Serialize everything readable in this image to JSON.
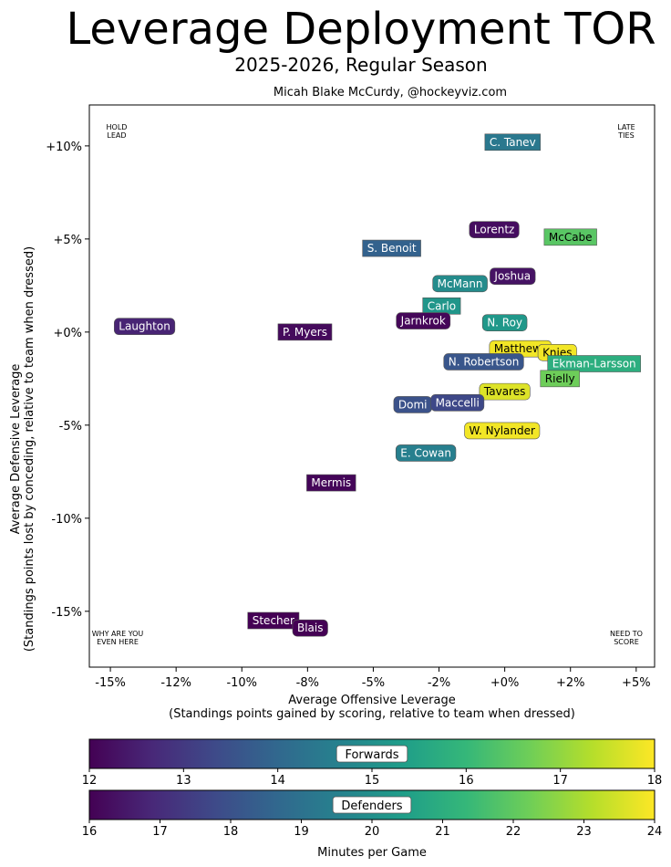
{
  "header": {
    "title": "Leverage Deployment TOR",
    "subtitle": "2025-2026, Regular Season",
    "author": "Micah Blake McCurdy, @hockeyviz.com"
  },
  "chart_data": {
    "type": "scatter",
    "title": "Leverage Deployment TOR",
    "subtitle": "2025-2026, Regular Season",
    "xlabel": "Average Offensive Leverage",
    "xlabel2": "(Standings points gained by scoring, relative to team when dressed)",
    "ylabel": "Average Defensive Leverage",
    "ylabel2": "(Standings points lost by conceding, relative to team when dressed)",
    "xlim": [
      -15.8,
      5.7
    ],
    "ylim": [
      -18.0,
      12.2
    ],
    "xticks": [
      -15,
      -12.5,
      -10,
      -7.5,
      -5,
      -2.5,
      0,
      2.5,
      5
    ],
    "xtick_labels": [
      "-15%",
      "-12%",
      "-10%",
      "-8%",
      "-5%",
      "-2%",
      "+0%",
      "+2%",
      "+5%"
    ],
    "yticks": [
      10,
      5,
      0,
      -5,
      -10,
      -15
    ],
    "ytick_labels": [
      "+10%",
      "+5%",
      "+0%",
      "-5%",
      "-10%",
      "-15%"
    ],
    "corners": {
      "top_left": [
        "HOLD",
        "LEAD"
      ],
      "top_right": [
        "LATE",
        "TIES"
      ],
      "bottom_left": [
        "WHY ARE YOU",
        "EVEN HERE"
      ],
      "bottom_right": [
        "NEED TO",
        "SCORE"
      ]
    },
    "players": [
      {
        "name": "C. Tanev",
        "x": 0.3,
        "y": 10.2,
        "pos": "D",
        "toi": 19.2
      },
      {
        "name": "Lorentz",
        "x": -0.4,
        "y": 5.5,
        "pos": "F",
        "toi": 12.2
      },
      {
        "name": "McCabe",
        "x": 2.5,
        "y": 5.1,
        "pos": "D",
        "toi": 21.9
      },
      {
        "name": "S. Benoit",
        "x": -4.3,
        "y": 4.5,
        "pos": "D",
        "toi": 18.5
      },
      {
        "name": "Joshua",
        "x": 0.3,
        "y": 3.0,
        "pos": "F",
        "toi": 12.3
      },
      {
        "name": "McMann",
        "x": -1.7,
        "y": 2.6,
        "pos": "F",
        "toi": 14.9
      },
      {
        "name": "Carlo",
        "x": -2.4,
        "y": 1.4,
        "pos": "D",
        "toi": 20.2
      },
      {
        "name": "Laughton",
        "x": -13.7,
        "y": 0.3,
        "pos": "F",
        "toi": 12.6
      },
      {
        "name": "Jarnkrok",
        "x": -3.1,
        "y": 0.6,
        "pos": "F",
        "toi": 12.1
      },
      {
        "name": "N. Roy",
        "x": 0.0,
        "y": 0.5,
        "pos": "F",
        "toi": 15.2
      },
      {
        "name": "P. Myers",
        "x": -7.6,
        "y": 0.0,
        "pos": "D",
        "toi": 16.2
      },
      {
        "name": "Matthews",
        "x": 0.6,
        "y": -0.9,
        "pos": "F",
        "toi": 17.9
      },
      {
        "name": "Knies",
        "x": 2.0,
        "y": -1.1,
        "pos": "F",
        "toi": 17.9
      },
      {
        "name": "Ekman-Larsson",
        "x": 3.4,
        "y": -1.7,
        "pos": "D",
        "toi": 21.0
      },
      {
        "name": "N. Robertson",
        "x": -0.8,
        "y": -1.6,
        "pos": "F",
        "toi": 13.6
      },
      {
        "name": "Rielly",
        "x": 2.1,
        "y": -2.5,
        "pos": "D",
        "toi": 22.2
      },
      {
        "name": "Tavares",
        "x": 0.0,
        "y": -3.2,
        "pos": "F",
        "toi": 17.7
      },
      {
        "name": "Domi",
        "x": -3.5,
        "y": -3.9,
        "pos": "F",
        "toi": 13.5
      },
      {
        "name": "Maccelli",
        "x": -1.8,
        "y": -3.8,
        "pos": "F",
        "toi": 13.3
      },
      {
        "name": "W. Nylander",
        "x": -0.1,
        "y": -5.3,
        "pos": "F",
        "toi": 17.9
      },
      {
        "name": "E. Cowan",
        "x": -3.0,
        "y": -6.5,
        "pos": "F",
        "toi": 14.6
      },
      {
        "name": "Mermis",
        "x": -6.6,
        "y": -8.1,
        "pos": "D",
        "toi": 16.1
      },
      {
        "name": "Stecher",
        "x": -8.8,
        "y": -15.5,
        "pos": "D",
        "toi": 16.0
      },
      {
        "name": "Blais",
        "x": -7.4,
        "y": -15.9,
        "pos": "F",
        "toi": 12.0
      }
    ],
    "colorbars": [
      {
        "label": "Forwards",
        "min": 12,
        "max": 18,
        "ticks": [
          "12",
          "13",
          "14",
          "15",
          "16",
          "17",
          "18"
        ]
      },
      {
        "label": "Defenders",
        "min": 16,
        "max": 24,
        "ticks": [
          "16",
          "17",
          "18",
          "19",
          "20",
          "21",
          "22",
          "23",
          "24"
        ]
      }
    ],
    "colorbar_axis_label": "Minutes per Game",
    "colormap": [
      "#440154",
      "#482878",
      "#3e4a89",
      "#31688e",
      "#26828e",
      "#1f9e89",
      "#35b779",
      "#6ece58",
      "#b5de2b",
      "#fde725"
    ]
  }
}
